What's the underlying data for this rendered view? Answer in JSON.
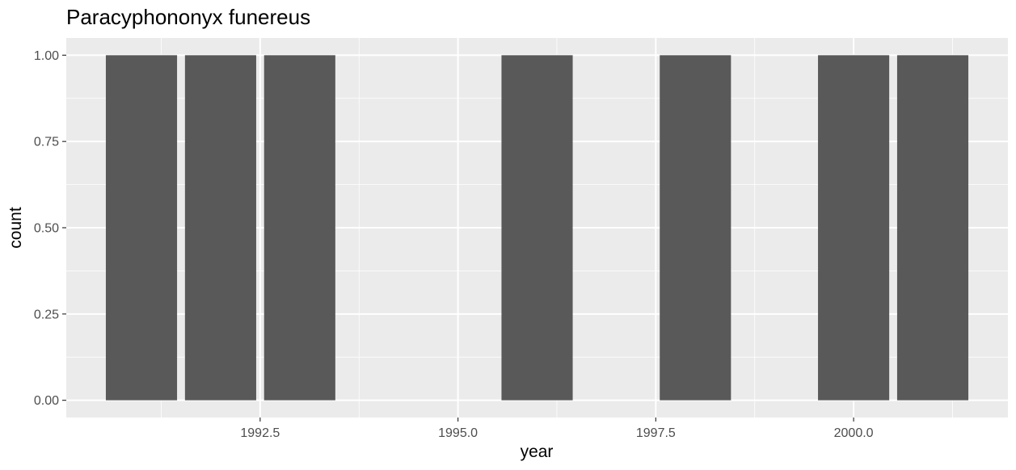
{
  "chart_data": {
    "type": "bar",
    "title": "Paracyphononyx funereus",
    "xlabel": "year",
    "ylabel": "count",
    "x": [
      1991,
      1992,
      1993,
      1996,
      1998,
      2000,
      2001
    ],
    "values": [
      1,
      1,
      1,
      1,
      1,
      1,
      1
    ],
    "xlim": [
      1990.05,
      2001.95
    ],
    "ylim": [
      -0.05,
      1.05
    ],
    "x_ticks": [
      1992.5,
      1995.0,
      1997.5,
      2000.0
    ],
    "x_tick_labels": [
      "1992.5",
      "1995.0",
      "1997.5",
      "2000.0"
    ],
    "y_ticks": [
      0,
      0.25,
      0.5,
      0.75,
      1.0
    ],
    "y_tick_labels": [
      "0.00",
      "0.25",
      "0.50",
      "0.75",
      "1.00"
    ],
    "grid": true,
    "legend": "none"
  },
  "colors": {
    "panel_background": "#ebebeb",
    "grid_major": "#ffffff",
    "bar_fill": "#595959",
    "tick_text": "#4d4d4d",
    "tick_mark": "#333333"
  }
}
